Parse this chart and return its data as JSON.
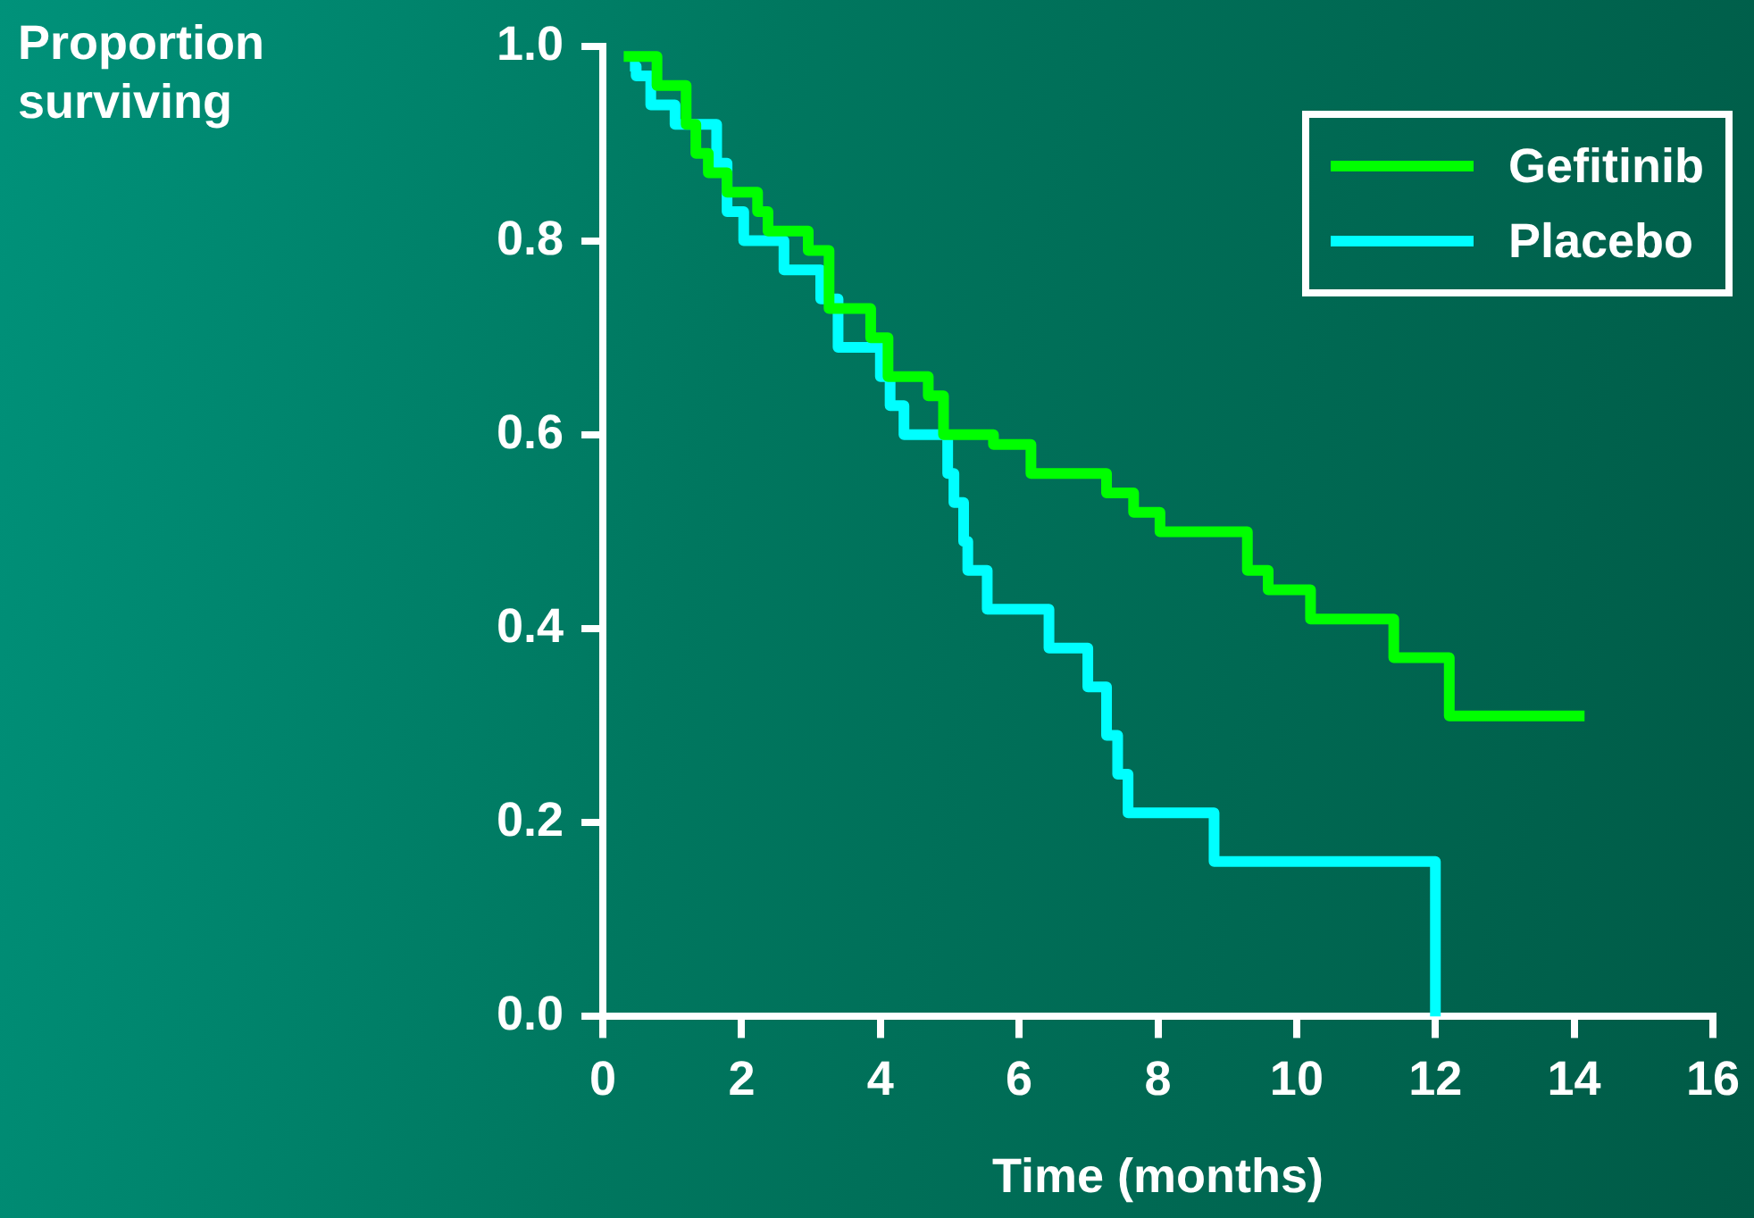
{
  "chart_data": {
    "type": "step",
    "xlabel": "Time (months)",
    "ylabel": "Proportion surviving",
    "xlim": [
      0,
      16
    ],
    "xticks": [
      0,
      2,
      4,
      6,
      8,
      10,
      12,
      14,
      16
    ],
    "ylim": [
      0,
      1
    ],
    "yticks": [
      {
        "value": 0,
        "label": "0.0"
      },
      {
        "value": 0.2,
        "label": "0.2"
      },
      {
        "value": 0.4,
        "label": "0.4"
      },
      {
        "value": 0.6,
        "label": "0.6"
      },
      {
        "value": 0.8,
        "label": "0.8"
      },
      {
        "value": 1,
        "label": "1.0"
      }
    ],
    "grid": false,
    "legend": "top right",
    "marker": "none",
    "line_style": "solid",
    "series": [
      {
        "name": "Gefitinib",
        "color": "#00ff00",
        "x": [
          0.3,
          0.78,
          1.2,
          1.34,
          1.52,
          1.79,
          2.23,
          2.38,
          2.96,
          3.26,
          3.86,
          4.11,
          4.69,
          4.91,
          5.63,
          6.17,
          7.26,
          7.65,
          8.03,
          9.29,
          9.59,
          10.2,
          11.4,
          12.2,
          14.15
        ],
        "values": [
          0.99,
          0.96,
          0.92,
          0.89,
          0.87,
          0.85,
          0.83,
          0.81,
          0.79,
          0.73,
          0.7,
          0.66,
          0.64,
          0.6,
          0.59,
          0.56,
          0.54,
          0.52,
          0.5,
          0.46,
          0.44,
          0.41,
          0.37,
          0.31,
          0.31
        ]
      },
      {
        "name": "Placebo",
        "color": "#00ffff",
        "x": [
          0.39,
          0.48,
          0.69,
          1.04,
          1.64,
          1.79,
          2.03,
          2.61,
          3.14,
          3.39,
          4.0,
          4.14,
          4.34,
          4.97,
          5.06,
          5.2,
          5.26,
          5.54,
          6.43,
          6.99,
          7.26,
          7.42,
          7.57,
          8.81,
          12.0
        ],
        "values": [
          0.98,
          0.97,
          0.94,
          0.92,
          0.88,
          0.83,
          0.8,
          0.77,
          0.74,
          0.69,
          0.66,
          0.63,
          0.6,
          0.56,
          0.53,
          0.49,
          0.46,
          0.42,
          0.38,
          0.34,
          0.29,
          0.25,
          0.21,
          0.16,
          0
        ]
      }
    ]
  }
}
